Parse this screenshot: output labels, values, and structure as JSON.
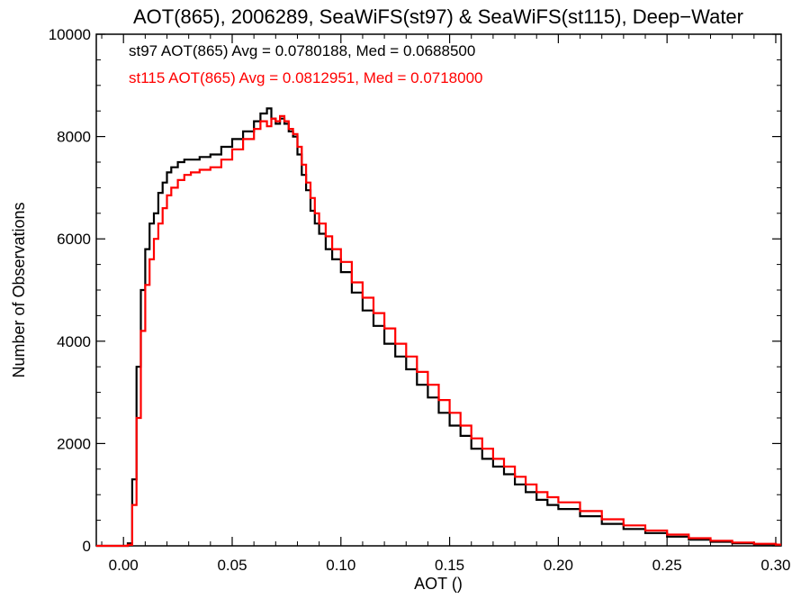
{
  "chart_data": {
    "type": "line",
    "title": "AOT(865), 2006289, SeaWiFS(st97) & SeaWiFS(st115), Deep−Water",
    "xlabel": "AOT ()",
    "ylabel": "Number of Observations",
    "xlim": [
      -0.0125,
      0.3025
    ],
    "ylim": [
      0,
      10000
    ],
    "x_ticks": [
      0.0,
      0.05,
      0.1,
      0.15,
      0.2,
      0.25,
      0.3
    ],
    "x_tick_labels": [
      "0.00",
      "0.05",
      "0.10",
      "0.15",
      "0.20",
      "0.25",
      "0.30"
    ],
    "y_ticks": [
      0,
      2000,
      4000,
      6000,
      8000,
      10000
    ],
    "y_tick_labels": [
      "0",
      "2000",
      "4000",
      "6000",
      "8000",
      "10000"
    ],
    "grid": false,
    "step": "histogram",
    "annotations": [
      {
        "text": "st97 AOT(865) Avg = 0.0780188, Med = 0.0688500",
        "color": "#000000"
      },
      {
        "text": "st115 AOT(865) Avg = 0.0812951, Med = 0.0718000",
        "color": "#ff0000"
      }
    ],
    "series": [
      {
        "color": "#000000",
        "points": [
          [
            -0.0125,
            0
          ],
          [
            0.0,
            0
          ],
          [
            0.002,
            50
          ],
          [
            0.004,
            1300
          ],
          [
            0.006,
            3500
          ],
          [
            0.008,
            5000
          ],
          [
            0.01,
            5800
          ],
          [
            0.012,
            6300
          ],
          [
            0.014,
            6500
          ],
          [
            0.016,
            6900
          ],
          [
            0.018,
            7100
          ],
          [
            0.02,
            7300
          ],
          [
            0.022,
            7400
          ],
          [
            0.025,
            7500
          ],
          [
            0.028,
            7550
          ],
          [
            0.031,
            7550
          ],
          [
            0.035,
            7600
          ],
          [
            0.04,
            7650
          ],
          [
            0.045,
            7800
          ],
          [
            0.05,
            7950
          ],
          [
            0.055,
            8100
          ],
          [
            0.06,
            8300
          ],
          [
            0.063,
            8450
          ],
          [
            0.066,
            8550
          ],
          [
            0.068,
            8350
          ],
          [
            0.07,
            8250
          ],
          [
            0.072,
            8350
          ],
          [
            0.074,
            8250
          ],
          [
            0.076,
            8100
          ],
          [
            0.078,
            8000
          ],
          [
            0.08,
            7650
          ],
          [
            0.082,
            7250
          ],
          [
            0.084,
            6950
          ],
          [
            0.086,
            6550
          ],
          [
            0.088,
            6300
          ],
          [
            0.09,
            6100
          ],
          [
            0.093,
            5800
          ],
          [
            0.096,
            5600
          ],
          [
            0.1,
            5350
          ],
          [
            0.105,
            4950
          ],
          [
            0.11,
            4600
          ],
          [
            0.115,
            4300
          ],
          [
            0.12,
            3950
          ],
          [
            0.125,
            3700
          ],
          [
            0.13,
            3450
          ],
          [
            0.135,
            3150
          ],
          [
            0.14,
            2900
          ],
          [
            0.145,
            2600
          ],
          [
            0.15,
            2350
          ],
          [
            0.155,
            2150
          ],
          [
            0.16,
            1900
          ],
          [
            0.165,
            1700
          ],
          [
            0.17,
            1550
          ],
          [
            0.175,
            1400
          ],
          [
            0.18,
            1200
          ],
          [
            0.185,
            1050
          ],
          [
            0.19,
            900
          ],
          [
            0.195,
            800
          ],
          [
            0.2,
            720
          ],
          [
            0.21,
            580
          ],
          [
            0.22,
            430
          ],
          [
            0.23,
            330
          ],
          [
            0.24,
            250
          ],
          [
            0.25,
            180
          ],
          [
            0.26,
            120
          ],
          [
            0.27,
            80
          ],
          [
            0.28,
            50
          ],
          [
            0.29,
            30
          ],
          [
            0.3,
            20
          ],
          [
            0.3025,
            20
          ]
        ]
      },
      {
        "color": "#ff0000",
        "points": [
          [
            -0.0125,
            0
          ],
          [
            0.0,
            0
          ],
          [
            0.002,
            20
          ],
          [
            0.004,
            800
          ],
          [
            0.006,
            2500
          ],
          [
            0.008,
            4200
          ],
          [
            0.01,
            5100
          ],
          [
            0.012,
            5600
          ],
          [
            0.014,
            6000
          ],
          [
            0.016,
            6300
          ],
          [
            0.018,
            6600
          ],
          [
            0.02,
            6850
          ],
          [
            0.022,
            7000
          ],
          [
            0.025,
            7150
          ],
          [
            0.028,
            7250
          ],
          [
            0.031,
            7300
          ],
          [
            0.035,
            7350
          ],
          [
            0.04,
            7400
          ],
          [
            0.045,
            7550
          ],
          [
            0.05,
            7750
          ],
          [
            0.055,
            7950
          ],
          [
            0.06,
            8150
          ],
          [
            0.063,
            8300
          ],
          [
            0.066,
            8200
          ],
          [
            0.068,
            8350
          ],
          [
            0.07,
            8300
          ],
          [
            0.072,
            8400
          ],
          [
            0.074,
            8300
          ],
          [
            0.076,
            8150
          ],
          [
            0.078,
            8050
          ],
          [
            0.08,
            7800
          ],
          [
            0.082,
            7450
          ],
          [
            0.084,
            7100
          ],
          [
            0.086,
            6800
          ],
          [
            0.088,
            6500
          ],
          [
            0.09,
            6300
          ],
          [
            0.093,
            6050
          ],
          [
            0.096,
            5800
          ],
          [
            0.1,
            5550
          ],
          [
            0.105,
            5150
          ],
          [
            0.11,
            4850
          ],
          [
            0.115,
            4550
          ],
          [
            0.12,
            4250
          ],
          [
            0.125,
            3950
          ],
          [
            0.13,
            3700
          ],
          [
            0.135,
            3400
          ],
          [
            0.14,
            3150
          ],
          [
            0.145,
            2850
          ],
          [
            0.15,
            2600
          ],
          [
            0.155,
            2350
          ],
          [
            0.16,
            2100
          ],
          [
            0.165,
            1900
          ],
          [
            0.17,
            1700
          ],
          [
            0.175,
            1550
          ],
          [
            0.18,
            1350
          ],
          [
            0.185,
            1200
          ],
          [
            0.19,
            1050
          ],
          [
            0.195,
            950
          ],
          [
            0.2,
            850
          ],
          [
            0.21,
            680
          ],
          [
            0.22,
            520
          ],
          [
            0.23,
            400
          ],
          [
            0.24,
            300
          ],
          [
            0.25,
            220
          ],
          [
            0.26,
            150
          ],
          [
            0.27,
            100
          ],
          [
            0.28,
            65
          ],
          [
            0.29,
            40
          ],
          [
            0.3,
            25
          ],
          [
            0.3025,
            25
          ]
        ]
      }
    ]
  }
}
